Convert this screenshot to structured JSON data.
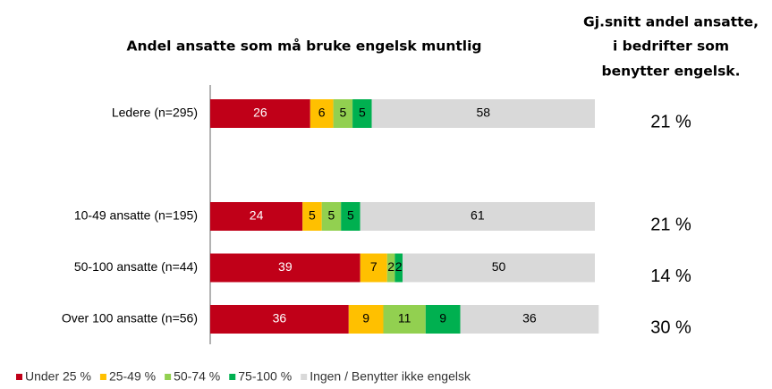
{
  "chart_data": {
    "type": "stacked-bar-horizontal",
    "title": "Andel ansatte som må bruke engelsk muntlig",
    "categories": [
      "Ledere (n=295)",
      null,
      "10-49 ansatte (n=195)",
      "50-100 ansatte (n=44)",
      "Over 100 ansatte (n=56)"
    ],
    "series": [
      {
        "name": "Under 25 %",
        "color": "#c00018",
        "label_color": "#ffffff",
        "values": [
          26,
          null,
          24,
          39,
          36
        ]
      },
      {
        "name": "25-49 %",
        "color": "#ffc000",
        "label_color": "#000000",
        "values": [
          6,
          null,
          5,
          7,
          9
        ]
      },
      {
        "name": "50-74 %",
        "color": "#92d050",
        "label_color": "#000000",
        "values": [
          5,
          null,
          5,
          2,
          11
        ]
      },
      {
        "name": "75-100 %",
        "color": "#00b050",
        "label_color": "#000000",
        "values": [
          5,
          null,
          5,
          2,
          9
        ]
      },
      {
        "name": "Ingen / Benytter ikke engelsk",
        "color": "#d9d9d9",
        "label_color": "#000000",
        "values": [
          58,
          null,
          61,
          50,
          36
        ]
      }
    ],
    "xlim": [
      0,
      100
    ],
    "legend": "bottom",
    "averages": {
      "title_lines": [
        "Gj.snitt andel ansatte,",
        "i bedrifter som",
        "benytter engelsk."
      ],
      "values": [
        21,
        null,
        21,
        14,
        30
      ],
      "value_labels": [
        "21 %",
        null,
        "21 %",
        "14 %",
        "30 %"
      ]
    }
  }
}
